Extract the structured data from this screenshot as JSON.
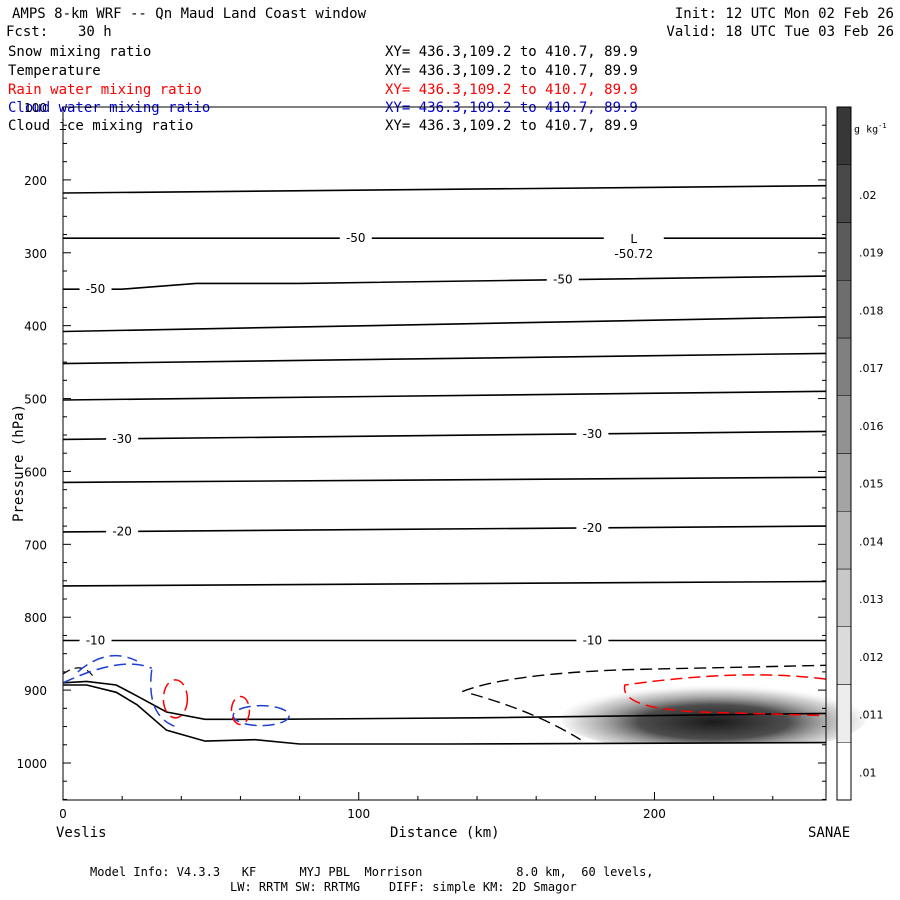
{
  "header": {
    "title": "AMPS 8-km WRF -- Qn Maud Land Coast window",
    "init": "Init: 12 UTC Mon 02 Feb 26",
    "fcst_label": "Fcst:",
    "fcst_value": "30 h",
    "valid": "Valid: 18 UTC Tue 03 Feb 26"
  },
  "fields": [
    {
      "name": "Snow mixing ratio",
      "xy": "XY= 436.3,109.2 to 410.7, 89.9",
      "color": "#000000"
    },
    {
      "name": "Temperature",
      "xy": "XY= 436.3,109.2 to 410.7, 89.9",
      "color": "#000000"
    },
    {
      "name": "Rain water mixing ratio",
      "xy": "XY= 436.3,109.2 to 410.7, 89.9",
      "color": "#ff0000"
    },
    {
      "name": "Cloud water mixing ratio",
      "xy": "XY= 436.3,109.2 to 410.7, 89.9",
      "color": "#0000cc"
    },
    {
      "name": "Cloud ice mixing ratio",
      "xy": "XY= 436.3,109.2 to 410.7, 89.9",
      "color": "#000000"
    }
  ],
  "footer": {
    "line1": "Model Info: V4.3.3   KF      MYJ PBL  Morrison             8.0 km,  60 levels,",
    "line2": "LW: RRTM SW: RRTMG    DIFF: simple KM: 2D Smagor"
  },
  "chart_data": {
    "type": "cross-section",
    "title": "AMPS 8-km WRF -- Qn Maud Land Coast window",
    "xlabel": "Distance (km)",
    "ylabel": "Pressure (hPa)",
    "xlim": [
      0,
      258
    ],
    "ylim": [
      1050,
      100
    ],
    "x_ticks": [
      0,
      100,
      200
    ],
    "y_ticks": [
      100,
      200,
      300,
      400,
      500,
      600,
      700,
      800,
      900,
      1000
    ],
    "x_endpoints": {
      "left": "Veslis",
      "right": "SANAE"
    },
    "colorbar": {
      "unit": "g kg",
      "unit_exp": "-1",
      "levels": [
        ".01",
        ".011",
        ".012",
        ".013",
        ".014",
        ".015",
        ".016",
        ".017",
        ".018",
        ".019",
        ".02"
      ]
    },
    "low_marker": {
      "letter": "L",
      "value": "-50.72",
      "x": 193,
      "p": 280
    },
    "isotherms": [
      {
        "points": [
          [
            0,
            218
          ],
          [
            258,
            208
          ]
        ],
        "label": null
      },
      {
        "points": [
          [
            0,
            280
          ],
          [
            258,
            280
          ]
        ],
        "label": "-50",
        "label_x": 99
      },
      {
        "points": [
          [
            0,
            350
          ],
          [
            20,
            350
          ],
          [
            45,
            342
          ],
          [
            80,
            342
          ],
          [
            150,
            338
          ],
          [
            258,
            332
          ]
        ],
        "label": "-50",
        "label_x": 11,
        "label2": "-50",
        "label2_x": 169
      },
      {
        "points": [
          [
            0,
            408
          ],
          [
            258,
            388
          ]
        ],
        "label": null
      },
      {
        "points": [
          [
            0,
            452
          ],
          [
            258,
            438
          ]
        ],
        "label": null
      },
      {
        "points": [
          [
            0,
            502
          ],
          [
            258,
            490
          ]
        ],
        "label": null
      },
      {
        "points": [
          [
            0,
            556
          ],
          [
            258,
            545
          ]
        ],
        "label": "-30",
        "label_x": 20,
        "label2": "-30",
        "label2_x": 179
      },
      {
        "points": [
          [
            0,
            615
          ],
          [
            258,
            608
          ]
        ],
        "label": null
      },
      {
        "points": [
          [
            0,
            683
          ],
          [
            258,
            675
          ]
        ],
        "label": "-20",
        "label_x": 20,
        "label2": "-20",
        "label2_x": 179
      },
      {
        "points": [
          [
            0,
            757
          ],
          [
            258,
            751
          ]
        ],
        "label": null
      },
      {
        "points": [
          [
            0,
            832
          ],
          [
            258,
            832
          ]
        ],
        "label": "-10",
        "label_x": 11,
        "label2": "-10",
        "label2_x": 179
      }
    ],
    "terrain_upper": [
      [
        0,
        890
      ],
      [
        8,
        888
      ],
      [
        18,
        893
      ],
      [
        25,
        908
      ],
      [
        35,
        930
      ],
      [
        48,
        940
      ],
      [
        70,
        940
      ],
      [
        140,
        938
      ],
      [
        258,
        932
      ]
    ],
    "terrain_lower": [
      [
        0,
        893
      ],
      [
        8,
        893
      ],
      [
        18,
        903
      ],
      [
        25,
        920
      ],
      [
        35,
        955
      ],
      [
        48,
        970
      ],
      [
        65,
        968
      ],
      [
        80,
        974
      ],
      [
        130,
        974
      ],
      [
        258,
        972
      ]
    ],
    "shading_region": {
      "x_start": 175,
      "x_end": 258,
      "p_top": 895,
      "p_bottom": 972,
      "peak_x": 220,
      "peak_value": ".019"
    }
  }
}
